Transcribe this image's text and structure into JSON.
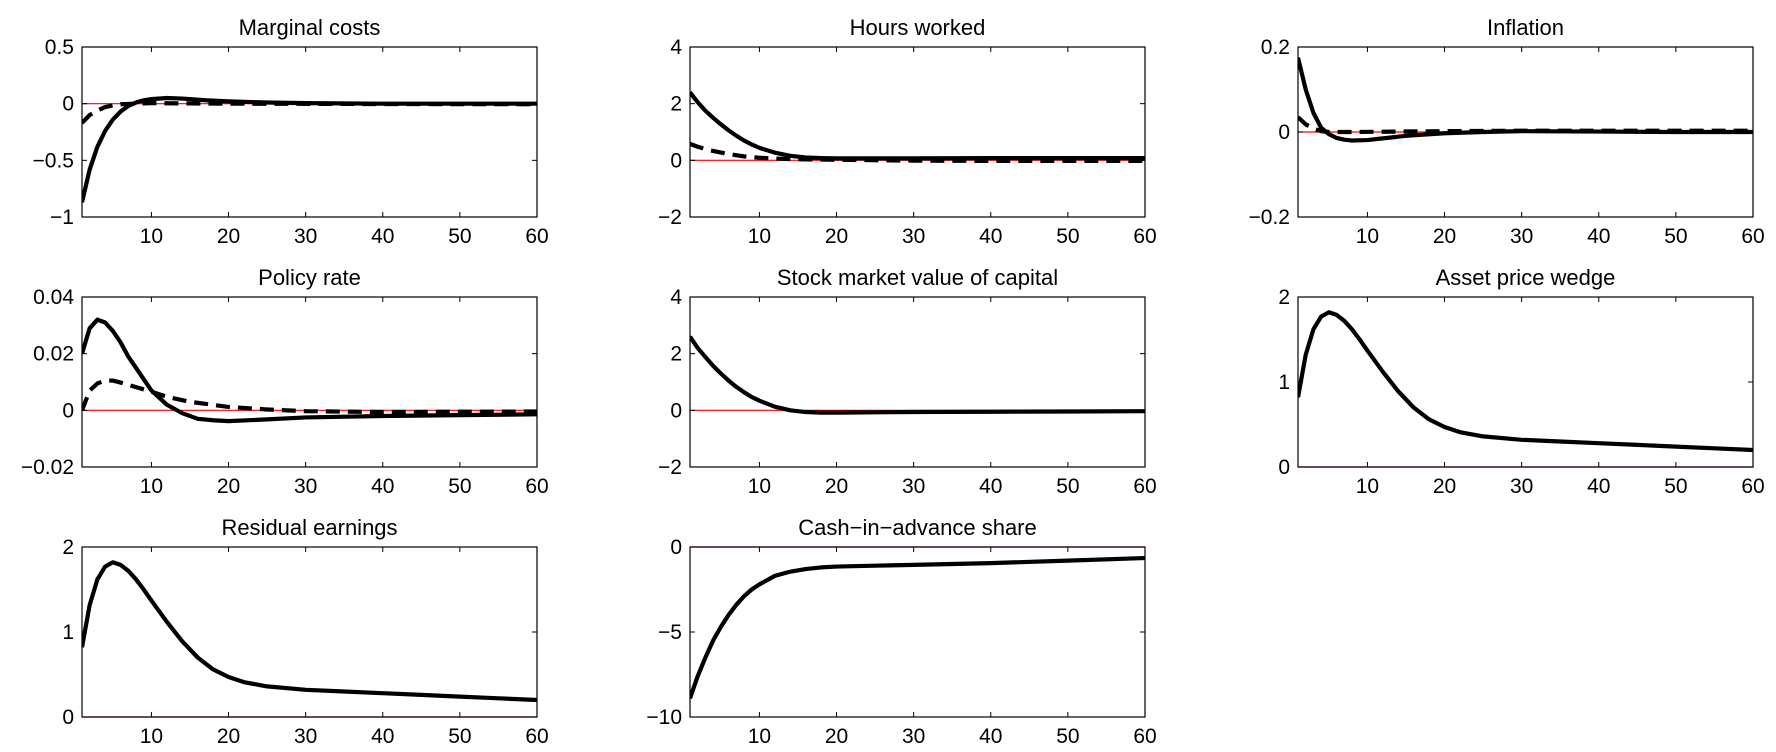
{
  "figure": {
    "background": "#ffffff",
    "zero_line_color": "#ff0000",
    "series_color": "#000000"
  },
  "chart_data": [
    {
      "type": "line",
      "title": "Marginal costs",
      "xlim": [
        1,
        60
      ],
      "ylim": [
        -1,
        0.5
      ],
      "xticks": [
        "10",
        "20",
        "30",
        "40",
        "50",
        "60"
      ],
      "xtick_values": [
        10,
        20,
        30,
        40,
        50,
        60
      ],
      "yticks": [
        "−1",
        "−0.5",
        "0",
        "0.5"
      ],
      "ytick_values": [
        -1,
        -0.5,
        0,
        0.5
      ],
      "reference_line": 0,
      "series": [
        {
          "style": "solid",
          "points": [
            [
              1,
              -0.87
            ],
            [
              2,
              -0.58
            ],
            [
              3,
              -0.38
            ],
            [
              4,
              -0.24
            ],
            [
              5,
              -0.14
            ],
            [
              6,
              -0.07
            ],
            [
              7,
              -0.02
            ],
            [
              8,
              0.01
            ],
            [
              9,
              0.03
            ],
            [
              10,
              0.04
            ],
            [
              12,
              0.05
            ],
            [
              14,
              0.045
            ],
            [
              17,
              0.03
            ],
            [
              20,
              0.02
            ],
            [
              25,
              0.01
            ],
            [
              30,
              0.005
            ],
            [
              40,
              0.0
            ],
            [
              50,
              0.0
            ],
            [
              60,
              0.0
            ]
          ]
        },
        {
          "style": "dashed",
          "points": [
            [
              1,
              -0.17
            ],
            [
              2,
              -0.1
            ],
            [
              3,
              -0.06
            ],
            [
              4,
              -0.03
            ],
            [
              5,
              -0.015
            ],
            [
              6,
              -0.005
            ],
            [
              8,
              0.0
            ],
            [
              10,
              0.005
            ],
            [
              15,
              0.002
            ],
            [
              20,
              0.0
            ],
            [
              40,
              -0.003
            ],
            [
              60,
              -0.005
            ]
          ]
        }
      ]
    },
    {
      "type": "line",
      "title": "Hours worked",
      "xlim": [
        1,
        60
      ],
      "ylim": [
        -2,
        4
      ],
      "xticks": [
        "10",
        "20",
        "30",
        "40",
        "50",
        "60"
      ],
      "xtick_values": [
        10,
        20,
        30,
        40,
        50,
        60
      ],
      "yticks": [
        "−2",
        "0",
        "2",
        "4"
      ],
      "ytick_values": [
        -2,
        0,
        2,
        4
      ],
      "reference_line": 0,
      "series": [
        {
          "style": "solid",
          "points": [
            [
              1,
              2.4
            ],
            [
              2,
              2.05
            ],
            [
              3,
              1.75
            ],
            [
              4,
              1.5
            ],
            [
              5,
              1.27
            ],
            [
              6,
              1.06
            ],
            [
              7,
              0.87
            ],
            [
              8,
              0.7
            ],
            [
              9,
              0.56
            ],
            [
              10,
              0.44
            ],
            [
              12,
              0.27
            ],
            [
              14,
              0.16
            ],
            [
              16,
              0.1
            ],
            [
              18,
              0.08
            ],
            [
              20,
              0.07
            ],
            [
              30,
              0.07
            ],
            [
              40,
              0.08
            ],
            [
              50,
              0.08
            ],
            [
              60,
              0.08
            ]
          ]
        },
        {
          "style": "dashed",
          "points": [
            [
              1,
              0.58
            ],
            [
              2,
              0.48
            ],
            [
              3,
              0.4
            ],
            [
              4,
              0.33
            ],
            [
              6,
              0.22
            ],
            [
              8,
              0.14
            ],
            [
              10,
              0.09
            ],
            [
              14,
              0.04
            ],
            [
              20,
              0.02
            ],
            [
              30,
              -0.01
            ],
            [
              40,
              -0.02
            ],
            [
              50,
              -0.02
            ],
            [
              60,
              -0.02
            ]
          ]
        }
      ]
    },
    {
      "type": "line",
      "title": "Inflation",
      "xlim": [
        1,
        60
      ],
      "ylim": [
        -0.2,
        0.2
      ],
      "xticks": [
        "10",
        "20",
        "30",
        "40",
        "50",
        "60"
      ],
      "xtick_values": [
        10,
        20,
        30,
        40,
        50,
        60
      ],
      "yticks": [
        "−0.2",
        "0",
        "0.2"
      ],
      "ytick_values": [
        -0.2,
        0,
        0.2
      ],
      "reference_line": 0,
      "series": [
        {
          "style": "solid",
          "points": [
            [
              1,
              0.175
            ],
            [
              2,
              0.1
            ],
            [
              3,
              0.045
            ],
            [
              4,
              0.01
            ],
            [
              5,
              -0.005
            ],
            [
              6,
              -0.014
            ],
            [
              7,
              -0.018
            ],
            [
              8,
              -0.02
            ],
            [
              10,
              -0.019
            ],
            [
              12,
              -0.015
            ],
            [
              15,
              -0.009
            ],
            [
              20,
              -0.003
            ],
            [
              25,
              0.0
            ],
            [
              30,
              0.002
            ],
            [
              40,
              0.001
            ],
            [
              50,
              0.0
            ],
            [
              60,
              0.0
            ]
          ]
        },
        {
          "style": "dashed",
          "points": [
            [
              1,
              0.035
            ],
            [
              2,
              0.018
            ],
            [
              3,
              0.008
            ],
            [
              4,
              0.002
            ],
            [
              5,
              0.0
            ],
            [
              8,
              0.0
            ],
            [
              20,
              0.002
            ],
            [
              30,
              0.003
            ],
            [
              40,
              0.003
            ],
            [
              50,
              0.003
            ],
            [
              60,
              0.003
            ]
          ]
        }
      ]
    },
    {
      "type": "line",
      "title": "Policy rate",
      "xlim": [
        1,
        60
      ],
      "ylim": [
        -0.02,
        0.04
      ],
      "xticks": [
        "10",
        "20",
        "30",
        "40",
        "50",
        "60"
      ],
      "xtick_values": [
        10,
        20,
        30,
        40,
        50,
        60
      ],
      "yticks": [
        "−0.02",
        "0",
        "0.02",
        "0.04"
      ],
      "ytick_values": [
        -0.02,
        0,
        0.02,
        0.04
      ],
      "reference_line": 0,
      "series": [
        {
          "style": "solid",
          "points": [
            [
              1,
              0.02
            ],
            [
              2,
              0.029
            ],
            [
              3,
              0.032
            ],
            [
              4,
              0.031
            ],
            [
              5,
              0.028
            ],
            [
              6,
              0.024
            ],
            [
              7,
              0.019
            ],
            [
              8,
              0.015
            ],
            [
              9,
              0.011
            ],
            [
              10,
              0.007
            ],
            [
              12,
              0.002
            ],
            [
              14,
              -0.001
            ],
            [
              16,
              -0.003
            ],
            [
              18,
              -0.0035
            ],
            [
              20,
              -0.0038
            ],
            [
              25,
              -0.0032
            ],
            [
              30,
              -0.0025
            ],
            [
              40,
              -0.002
            ],
            [
              50,
              -0.0017
            ],
            [
              60,
              -0.0014
            ]
          ]
        },
        {
          "style": "dashed",
          "points": [
            [
              1,
              0.0
            ],
            [
              2,
              0.007
            ],
            [
              3,
              0.0095
            ],
            [
              4,
              0.0105
            ],
            [
              5,
              0.0105
            ],
            [
              6,
              0.0098
            ],
            [
              8,
              0.0082
            ],
            [
              10,
              0.0066
            ],
            [
              12,
              0.0048
            ],
            [
              15,
              0.003
            ],
            [
              20,
              0.0012
            ],
            [
              25,
              0.0003
            ],
            [
              30,
              -0.0003
            ],
            [
              40,
              -0.0006
            ],
            [
              50,
              -0.0005
            ],
            [
              60,
              -0.0004
            ]
          ]
        }
      ]
    },
    {
      "type": "line",
      "title": "Stock market value of capital",
      "xlim": [
        1,
        60
      ],
      "ylim": [
        -2,
        4
      ],
      "xticks": [
        "10",
        "20",
        "30",
        "40",
        "50",
        "60"
      ],
      "xtick_values": [
        10,
        20,
        30,
        40,
        50,
        60
      ],
      "yticks": [
        "−2",
        "0",
        "2",
        "4"
      ],
      "ytick_values": [
        -2,
        0,
        2,
        4
      ],
      "reference_line": 0,
      "series": [
        {
          "style": "solid",
          "points": [
            [
              1,
              2.6
            ],
            [
              2,
              2.2
            ],
            [
              3,
              1.88
            ],
            [
              4,
              1.57
            ],
            [
              5,
              1.3
            ],
            [
              6,
              1.05
            ],
            [
              7,
              0.83
            ],
            [
              8,
              0.64
            ],
            [
              9,
              0.47
            ],
            [
              10,
              0.34
            ],
            [
              12,
              0.13
            ],
            [
              14,
              0.0
            ],
            [
              16,
              -0.06
            ],
            [
              18,
              -0.08
            ],
            [
              20,
              -0.08
            ],
            [
              30,
              -0.06
            ],
            [
              40,
              -0.05
            ],
            [
              50,
              -0.04
            ],
            [
              60,
              -0.03
            ]
          ]
        }
      ]
    },
    {
      "type": "line",
      "title": "Asset price wedge",
      "xlim": [
        1,
        60
      ],
      "ylim": [
        0,
        2
      ],
      "xticks": [
        "10",
        "20",
        "30",
        "40",
        "50",
        "60"
      ],
      "xtick_values": [
        10,
        20,
        30,
        40,
        50,
        60
      ],
      "yticks": [
        "0",
        "1",
        "2"
      ],
      "ytick_values": [
        0,
        1,
        2
      ],
      "reference_line": 0,
      "series": [
        {
          "style": "solid",
          "points": [
            [
              1,
              0.82
            ],
            [
              2,
              1.32
            ],
            [
              3,
              1.62
            ],
            [
              4,
              1.77
            ],
            [
              5,
              1.82
            ],
            [
              6,
              1.79
            ],
            [
              7,
              1.72
            ],
            [
              8,
              1.62
            ],
            [
              9,
              1.5
            ],
            [
              10,
              1.37
            ],
            [
              12,
              1.12
            ],
            [
              14,
              0.89
            ],
            [
              16,
              0.7
            ],
            [
              18,
              0.56
            ],
            [
              20,
              0.47
            ],
            [
              22,
              0.41
            ],
            [
              25,
              0.36
            ],
            [
              30,
              0.32
            ],
            [
              35,
              0.3
            ],
            [
              40,
              0.28
            ],
            [
              45,
              0.26
            ],
            [
              50,
              0.24
            ],
            [
              55,
              0.22
            ],
            [
              60,
              0.2
            ]
          ]
        }
      ]
    },
    {
      "type": "line",
      "title": "Residual earnings",
      "xlim": [
        1,
        60
      ],
      "ylim": [
        0,
        2
      ],
      "xticks": [
        "10",
        "20",
        "30",
        "40",
        "50",
        "60"
      ],
      "xtick_values": [
        10,
        20,
        30,
        40,
        50,
        60
      ],
      "yticks": [
        "0",
        "1",
        "2"
      ],
      "ytick_values": [
        0,
        1,
        2
      ],
      "reference_line": 0,
      "series": [
        {
          "style": "solid",
          "points": [
            [
              1,
              0.82
            ],
            [
              2,
              1.32
            ],
            [
              3,
              1.62
            ],
            [
              4,
              1.77
            ],
            [
              5,
              1.82
            ],
            [
              6,
              1.79
            ],
            [
              7,
              1.72
            ],
            [
              8,
              1.62
            ],
            [
              9,
              1.5
            ],
            [
              10,
              1.37
            ],
            [
              12,
              1.12
            ],
            [
              14,
              0.89
            ],
            [
              16,
              0.7
            ],
            [
              18,
              0.56
            ],
            [
              20,
              0.47
            ],
            [
              22,
              0.41
            ],
            [
              25,
              0.36
            ],
            [
              30,
              0.32
            ],
            [
              35,
              0.3
            ],
            [
              40,
              0.28
            ],
            [
              45,
              0.26
            ],
            [
              50,
              0.24
            ],
            [
              55,
              0.22
            ],
            [
              60,
              0.2
            ]
          ]
        }
      ]
    },
    {
      "type": "line",
      "title": "Cash−in−advance share",
      "xlim": [
        1,
        60
      ],
      "ylim": [
        -10,
        0
      ],
      "xticks": [
        "10",
        "20",
        "30",
        "40",
        "50",
        "60"
      ],
      "xtick_values": [
        10,
        20,
        30,
        40,
        50,
        60
      ],
      "yticks": [
        "−10",
        "−5",
        "0"
      ],
      "ytick_values": [
        -10,
        -5,
        0
      ],
      "reference_line": 0,
      "series": [
        {
          "style": "solid",
          "points": [
            [
              1,
              -8.9
            ],
            [
              2,
              -7.6
            ],
            [
              3,
              -6.5
            ],
            [
              4,
              -5.5
            ],
            [
              5,
              -4.7
            ],
            [
              6,
              -4.0
            ],
            [
              7,
              -3.4
            ],
            [
              8,
              -2.9
            ],
            [
              9,
              -2.5
            ],
            [
              10,
              -2.2
            ],
            [
              12,
              -1.7
            ],
            [
              14,
              -1.45
            ],
            [
              16,
              -1.3
            ],
            [
              18,
              -1.2
            ],
            [
              20,
              -1.15
            ],
            [
              25,
              -1.1
            ],
            [
              30,
              -1.05
            ],
            [
              40,
              -0.95
            ],
            [
              50,
              -0.8
            ],
            [
              60,
              -0.65
            ]
          ]
        }
      ]
    }
  ]
}
